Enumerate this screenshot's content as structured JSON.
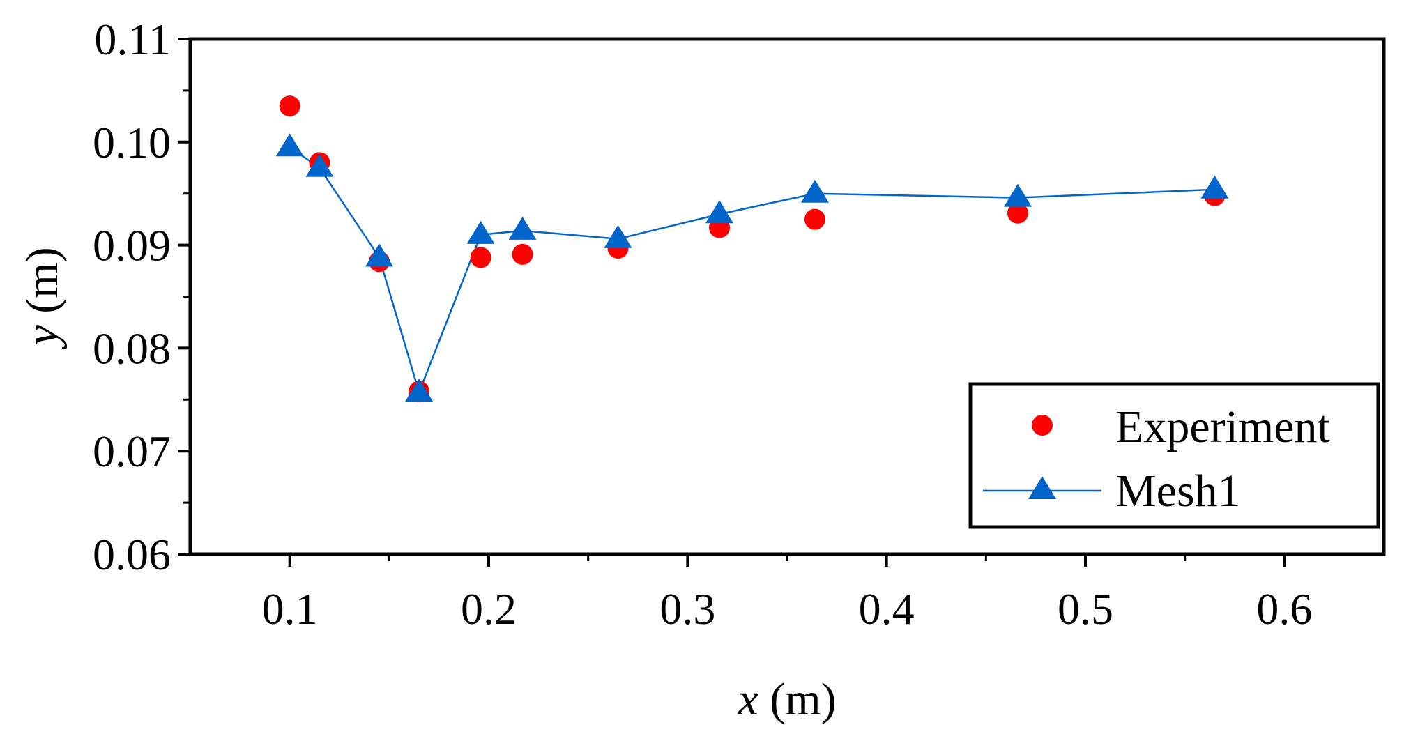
{
  "chart_data": {
    "type": "scatter",
    "title": "",
    "xlabel": {
      "var": "x",
      "unit": " (m)"
    },
    "ylabel": {
      "var": "y",
      "unit": " (m)"
    },
    "xlim": [
      0.05,
      0.65
    ],
    "ylim": [
      0.06,
      0.11
    ],
    "x_ticks": [
      0.1,
      0.2,
      0.3,
      0.4,
      0.5,
      0.6
    ],
    "x_tick_labels": [
      "0.1",
      "0.2",
      "0.3",
      "0.4",
      "0.5",
      "0.6"
    ],
    "y_ticks": [
      0.06,
      0.07,
      0.08,
      0.09,
      0.1,
      0.11
    ],
    "y_tick_labels": [
      "0.06",
      "0.07",
      "0.08",
      "0.09",
      "0.10",
      "0.11"
    ],
    "grid": false,
    "legend_position": "bottom-right",
    "series": [
      {
        "name": "Experiment",
        "style": "circle-markers",
        "color": "#ff0000",
        "x": [
          0.1,
          0.115,
          0.145,
          0.165,
          0.196,
          0.217,
          0.265,
          0.316,
          0.364,
          0.466,
          0.565
        ],
        "y": [
          0.1035,
          0.098,
          0.0884,
          0.0758,
          0.0888,
          0.0891,
          0.0897,
          0.0917,
          0.0925,
          0.0931,
          0.0948
        ]
      },
      {
        "name": "Mesh1",
        "style": "line-triangle-markers",
        "color": "#0066cc",
        "x": [
          0.1,
          0.115,
          0.145,
          0.165,
          0.196,
          0.217,
          0.265,
          0.316,
          0.364,
          0.466,
          0.565
        ],
        "y": [
          0.0995,
          0.0975,
          0.0888,
          0.0757,
          0.091,
          0.0914,
          0.0906,
          0.093,
          0.095,
          0.0946,
          0.0954
        ]
      }
    ]
  }
}
